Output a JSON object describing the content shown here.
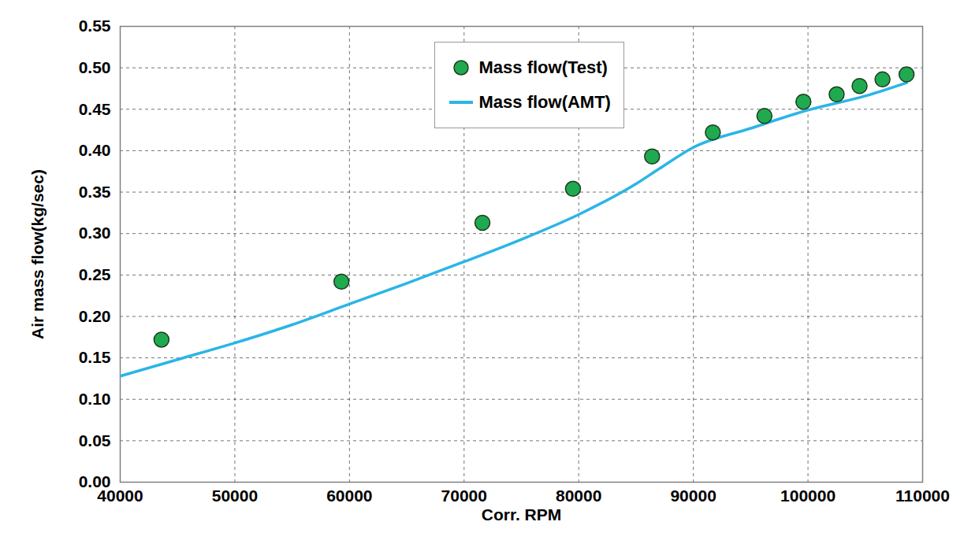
{
  "chart_data": {
    "type": "line",
    "x_label": "Corr. RPM",
    "y_label": "Air mass flow(kg/sec)",
    "xlim": [
      40000,
      110000
    ],
    "xticks": [
      40000,
      50000,
      60000,
      70000,
      80000,
      90000,
      100000,
      110000
    ],
    "ylim": [
      0,
      0.55
    ],
    "yticks": [
      {
        "value": 0,
        "label": "0.00"
      },
      {
        "value": 0.05,
        "label": "0.05"
      },
      {
        "value": 0.1,
        "label": "0.10"
      },
      {
        "value": 0.15,
        "label": "0.15"
      },
      {
        "value": 0.2,
        "label": "0.20"
      },
      {
        "value": 0.25,
        "label": "0.25"
      },
      {
        "value": 0.3,
        "label": "0.30"
      },
      {
        "value": 0.35,
        "label": "0.35"
      },
      {
        "value": 0.4,
        "label": "0.40"
      },
      {
        "value": 0.45,
        "label": "0.45"
      },
      {
        "value": 0.5,
        "label": "0.50"
      },
      {
        "value": 0.55,
        "label": "0.55"
      }
    ],
    "grid": true,
    "legend": "upper center",
    "series": [
      {
        "name": "Mass flow(Test)",
        "type": "scatter",
        "marker": "circle",
        "color": "#1faa4f",
        "x": [
          43600,
          59300,
          71600,
          79500,
          86400,
          91700,
          96200,
          99600,
          102500,
          104500,
          106500,
          108600
        ],
        "values": [
          0.172,
          0.242,
          0.313,
          0.354,
          0.393,
          0.422,
          0.442,
          0.459,
          0.468,
          0.478,
          0.486,
          0.492
        ]
      },
      {
        "name": "Mass flow(AMT)",
        "type": "line",
        "line_style": "solid",
        "color": "#2bb5e6",
        "x": [
          40000,
          45000,
          50000,
          55000,
          60000,
          65000,
          70000,
          75000,
          80000,
          85000,
          87000,
          90000,
          95000,
          100000,
          105000,
          108600
        ],
        "values": [
          0.128,
          0.148,
          0.168,
          0.19,
          0.215,
          0.24,
          0.266,
          0.293,
          0.323,
          0.36,
          0.378,
          0.404,
          0.427,
          0.449,
          0.466,
          0.482
        ]
      }
    ]
  }
}
